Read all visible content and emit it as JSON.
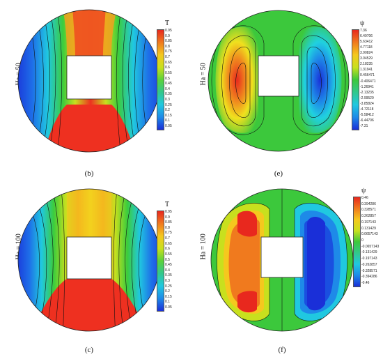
{
  "panels": {
    "b": {
      "ylabel": "Ha = 50",
      "caption": "(b)",
      "legend_title": "T",
      "legend_labels": [
        "0.95",
        "0.9",
        "0.85",
        "0.8",
        "0.75",
        "0.7",
        "0.65",
        "0.6",
        "0.55",
        "0.5",
        "0.45",
        "0.4",
        "0.35",
        "0.3",
        "0.25",
        "0.2",
        "0.15",
        "0.1",
        "0.05"
      ]
    },
    "c": {
      "ylabel": "Ha = 100",
      "caption": "(c)",
      "legend_title": "T",
      "legend_labels": [
        "0.95",
        "0.9",
        "0.85",
        "0.8",
        "0.75",
        "0.7",
        "0.65",
        "0.6",
        "0.55",
        "0.5",
        "0.45",
        "0.4",
        "0.35",
        "0.3",
        "0.25",
        "0.2",
        "0.15",
        "0.1",
        "0.05"
      ]
    },
    "e": {
      "ylabel": "Ha = 50",
      "caption": "(e)",
      "legend_title": "ψ",
      "legend_labels": [
        "7.36",
        "6.49706",
        "5.63412",
        "4.77118",
        "3.90824",
        "3.04529",
        "2.18235",
        "1.31941",
        "0.456471",
        "-0.406471",
        "-1.26941",
        "-2.13235",
        "-2.99529",
        "-3.85824",
        "-4.72118",
        "-5.58412",
        "-6.44706",
        "-7.31"
      ]
    },
    "f": {
      "ylabel": "Ha = 100",
      "caption": "(f)",
      "legend_title": "ψ",
      "legend_labels": [
        "0.46",
        "0.394286",
        "0.328571",
        "0.262857",
        "0.197143",
        "0.131429",
        "0.0657143",
        "0",
        "-0.0657143",
        "-0.131429",
        "-0.197143",
        "-0.262857",
        "-0.328571",
        "-0.394286",
        "-0.46"
      ]
    }
  },
  "colors": {
    "hot": "#e8281e",
    "cold": "#1a2fd8",
    "mid": "#3cc83c"
  }
}
